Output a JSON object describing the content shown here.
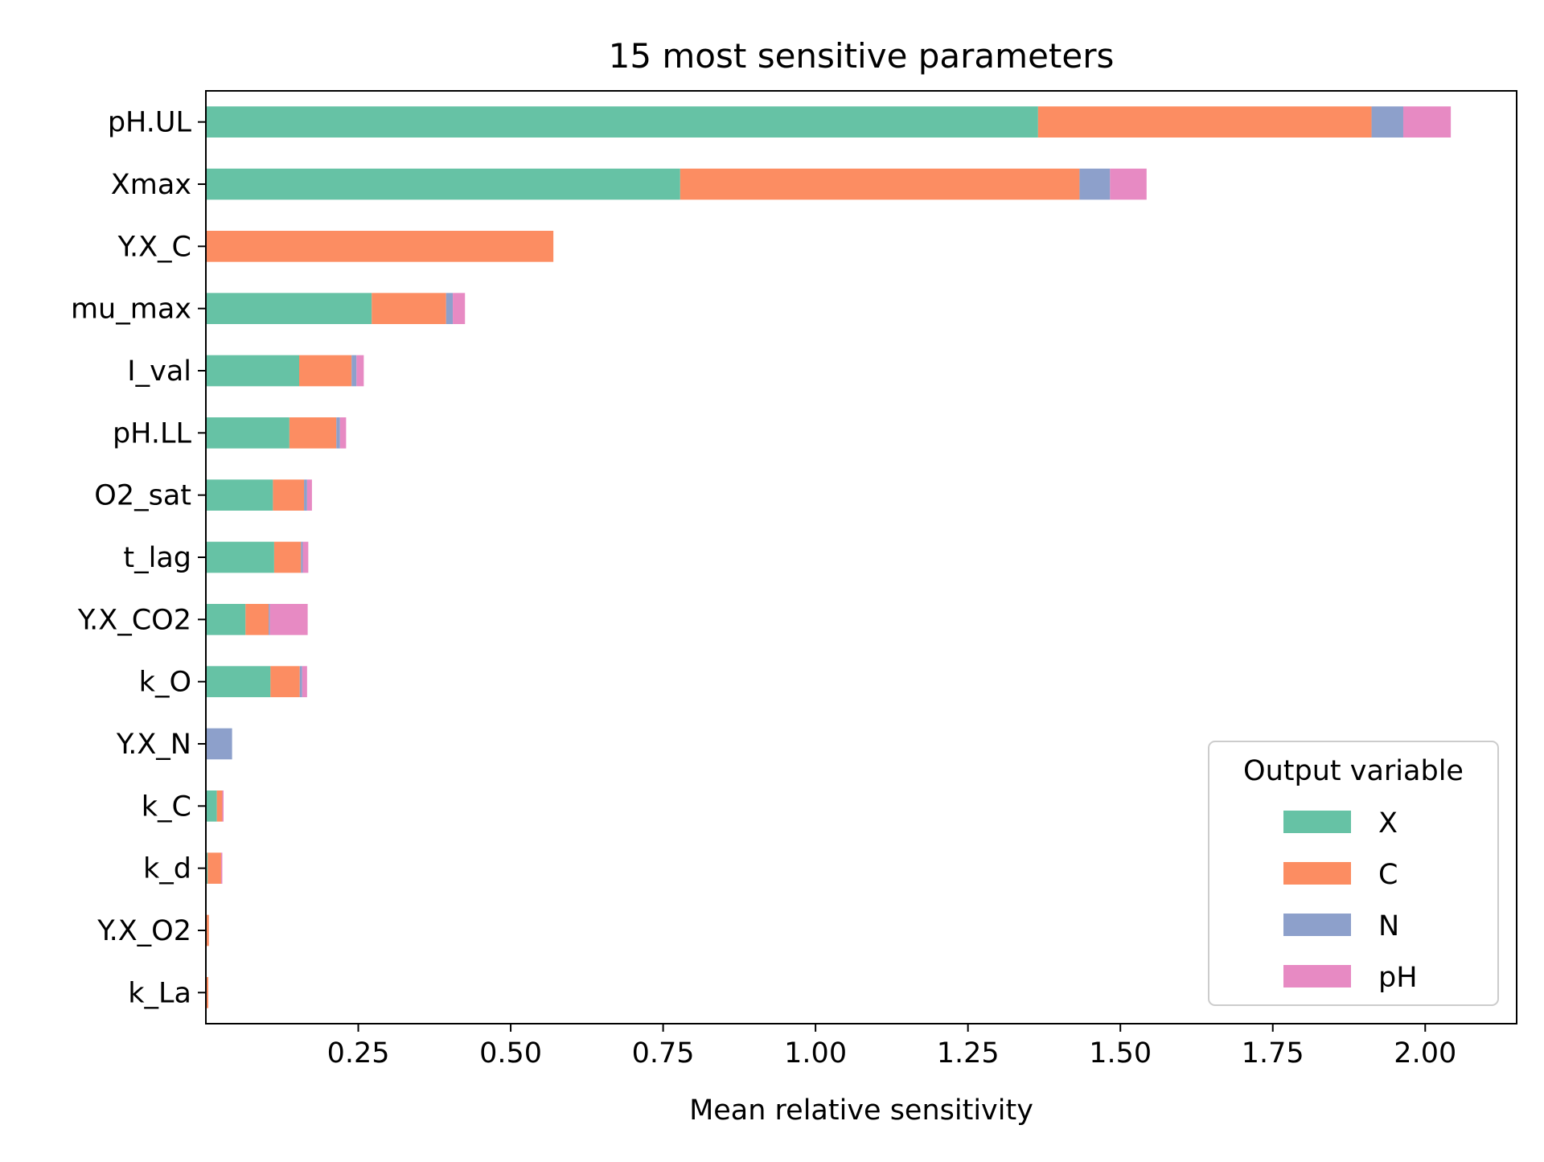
{
  "chart_data": {
    "type": "bar",
    "orientation": "horizontal",
    "stacked": true,
    "title": "15 most sensitive parameters",
    "xlabel": "Mean relative sensitivity",
    "ylabel": "",
    "xlim": [
      0.0,
      2.15
    ],
    "xticks": [
      {
        "value": 0.25,
        "label": "0.25"
      },
      {
        "value": 0.5,
        "label": "0.50"
      },
      {
        "value": 0.75,
        "label": "0.75"
      },
      {
        "value": 1.0,
        "label": "1.00"
      },
      {
        "value": 1.25,
        "label": "1.25"
      },
      {
        "value": 1.5,
        "label": "1.50"
      },
      {
        "value": 1.75,
        "label": "1.75"
      },
      {
        "value": 2.0,
        "label": "2.00"
      }
    ],
    "categories": [
      "pH.UL",
      "Xmax",
      "Y.X_C",
      "mu_max",
      "I_val",
      "pH.LL",
      "O2_sat",
      "t_lag",
      "Y.X_CO2",
      "k_O",
      "Y.X_N",
      "k_C",
      "k_d",
      "Y.X_O2",
      "k_La"
    ],
    "series": [
      {
        "name": "X",
        "color": "#66c2a5",
        "values": [
          1.365,
          0.778,
          0.0,
          0.272,
          0.153,
          0.137,
          0.11,
          0.112,
          0.065,
          0.106,
          0.0,
          0.018,
          0.003,
          0.0,
          0.0
        ]
      },
      {
        "name": "C",
        "color": "#fc8d62",
        "values": [
          0.547,
          0.655,
          0.57,
          0.122,
          0.086,
          0.077,
          0.051,
          0.044,
          0.038,
          0.048,
          0.0,
          0.009,
          0.022,
          0.005,
          0.004
        ]
      },
      {
        "name": "N",
        "color": "#8da0cb",
        "values": [
          0.052,
          0.05,
          0.0,
          0.011,
          0.008,
          0.006,
          0.005,
          0.003,
          0.002,
          0.004,
          0.043,
          0.0,
          0.0,
          0.0,
          0.0
        ]
      },
      {
        "name": "pH",
        "color": "#e78ac3",
        "values": [
          0.078,
          0.06,
          0.0,
          0.02,
          0.012,
          0.01,
          0.008,
          0.009,
          0.062,
          0.008,
          0.0,
          0.002,
          0.002,
          0.0,
          0.0
        ]
      }
    ],
    "legend": {
      "title": "Output variable",
      "placement": "lower-right"
    },
    "grid": false
  }
}
